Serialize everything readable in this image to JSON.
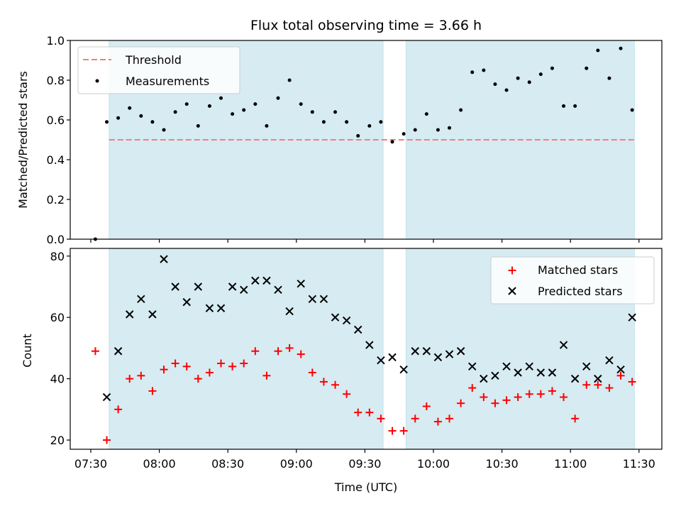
{
  "chart_data": [
    {
      "type": "scatter",
      "title": "Flux total observing time = 3.66 h",
      "xlabel": "",
      "ylabel": "Matched/Predicted stars",
      "ylim": [
        0,
        1.0
      ],
      "y_ticks": [
        "0.0",
        "0.2",
        "0.4",
        "0.6",
        "0.8",
        "1.0"
      ],
      "y_tick_values": [
        0,
        0.2,
        0.4,
        0.6,
        0.8,
        1.0
      ],
      "x_tick_labels_shown": false,
      "threshold": {
        "name": "Threshold",
        "value": 0.5,
        "color": "#f08080",
        "style": "dashed"
      },
      "series": [
        {
          "name": "Measurements",
          "color": "#000000",
          "marker": "dot",
          "x": [
            "07:32",
            "07:37",
            "07:42",
            "07:47",
            "07:52",
            "07:57",
            "08:02",
            "08:07",
            "08:12",
            "08:17",
            "08:22",
            "08:27",
            "08:32",
            "08:37",
            "08:42",
            "08:47",
            "08:52",
            "08:57",
            "09:02",
            "09:07",
            "09:12",
            "09:17",
            "09:22",
            "09:27",
            "09:32",
            "09:37",
            "09:42",
            "09:47",
            "09:52",
            "09:57",
            "10:02",
            "10:07",
            "10:12",
            "10:17",
            "10:22",
            "10:27",
            "10:32",
            "10:37",
            "10:42",
            "10:47",
            "10:52",
            "10:57",
            "11:02",
            "11:07",
            "11:12",
            "11:17",
            "11:22",
            "11:27"
          ],
          "values": [
            0.0,
            0.59,
            0.61,
            0.66,
            0.62,
            0.59,
            0.55,
            0.64,
            0.68,
            0.57,
            0.67,
            0.71,
            0.63,
            0.65,
            0.68,
            0.57,
            0.71,
            0.8,
            0.68,
            0.64,
            0.59,
            0.64,
            0.59,
            0.52,
            0.57,
            0.59,
            0.49,
            0.53,
            0.55,
            0.63,
            0.55,
            0.56,
            0.65,
            0.84,
            0.85,
            0.78,
            0.75,
            0.81,
            0.79,
            0.83,
            0.86,
            0.67,
            0.67,
            0.86,
            0.95,
            0.81,
            0.96,
            0.65
          ]
        }
      ],
      "shaded_regions": [
        [
          "07:38",
          "09:38"
        ],
        [
          "09:48",
          "11:28"
        ]
      ],
      "shade_color": "#add8e6",
      "legend_position": "top-left"
    },
    {
      "type": "scatter",
      "title": "",
      "xlabel": "Time (UTC)",
      "ylabel": "Count",
      "ylim": [
        17,
        82.5
      ],
      "y_ticks": [
        "20",
        "40",
        "60",
        "80"
      ],
      "y_tick_values": [
        20,
        40,
        60,
        80
      ],
      "x_ticks": [
        "07:30",
        "08:00",
        "08:30",
        "09:00",
        "09:30",
        "10:00",
        "10:30",
        "11:00",
        "11:30"
      ],
      "xlim": [
        "07:21",
        "11:40"
      ],
      "series": [
        {
          "name": "Matched stars",
          "color": "#ff0000",
          "marker": "plus",
          "x": [
            "07:32",
            "07:37",
            "07:42",
            "07:47",
            "07:52",
            "07:57",
            "08:02",
            "08:07",
            "08:12",
            "08:17",
            "08:22",
            "08:27",
            "08:32",
            "08:37",
            "08:42",
            "08:47",
            "08:52",
            "08:57",
            "09:02",
            "09:07",
            "09:12",
            "09:17",
            "09:22",
            "09:27",
            "09:32",
            "09:37",
            "09:42",
            "09:47",
            "09:52",
            "09:57",
            "10:02",
            "10:07",
            "10:12",
            "10:17",
            "10:22",
            "10:27",
            "10:32",
            "10:37",
            "10:42",
            "10:47",
            "10:52",
            "10:57",
            "11:02",
            "11:07",
            "11:12",
            "11:17",
            "11:22",
            "11:27"
          ],
          "values": [
            49,
            20,
            30,
            40,
            41,
            36,
            43,
            45,
            44,
            40,
            42,
            45,
            44,
            45,
            49,
            41,
            49,
            50,
            48,
            42,
            39,
            38,
            35,
            29,
            29,
            27,
            23,
            23,
            27,
            31,
            26,
            27,
            32,
            37,
            34,
            32,
            33,
            34,
            35,
            35,
            36,
            34,
            27,
            38,
            38,
            37,
            41,
            39
          ]
        },
        {
          "name": "Predicted stars",
          "color": "#000000",
          "marker": "cross",
          "x": [
            "07:37",
            "07:42",
            "07:47",
            "07:52",
            "07:57",
            "08:02",
            "08:07",
            "08:12",
            "08:17",
            "08:22",
            "08:27",
            "08:32",
            "08:37",
            "08:42",
            "08:47",
            "08:52",
            "08:57",
            "09:02",
            "09:07",
            "09:12",
            "09:17",
            "09:22",
            "09:27",
            "09:32",
            "09:37",
            "09:42",
            "09:47",
            "09:52",
            "09:57",
            "10:02",
            "10:07",
            "10:12",
            "10:17",
            "10:22",
            "10:27",
            "10:32",
            "10:37",
            "10:42",
            "10:47",
            "10:52",
            "10:57",
            "11:02",
            "11:07",
            "11:12",
            "11:17",
            "11:22",
            "11:27"
          ],
          "values": [
            34,
            49,
            61,
            66,
            61,
            79,
            70,
            65,
            70,
            63,
            63,
            70,
            69,
            72,
            72,
            69,
            62,
            71,
            66,
            66,
            60,
            59,
            56,
            51,
            46,
            47,
            43,
            49,
            49,
            47,
            48,
            49,
            44,
            40,
            41,
            44,
            42,
            44,
            42,
            42,
            51,
            40,
            44,
            40,
            46,
            43,
            60
          ]
        }
      ],
      "shaded_regions": [
        [
          "07:38",
          "09:38"
        ],
        [
          "09:48",
          "11:28"
        ]
      ],
      "shade_color": "#add8e6",
      "legend_position": "top-right"
    }
  ]
}
